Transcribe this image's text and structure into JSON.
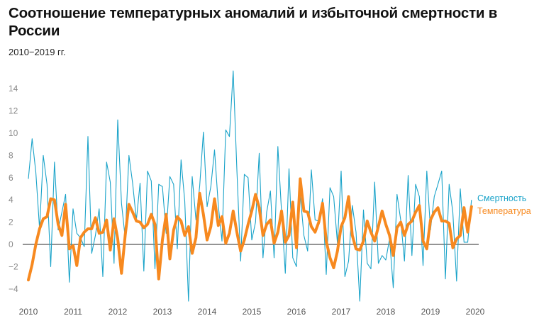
{
  "title": "Соотношение температурных аномалий и избыточной смертности в России",
  "subtitle": "2010−2019 гг.",
  "chart_data": {
    "type": "line",
    "title": "Соотношение температурных аномалий и избыточной смертности в России",
    "subtitle": "2010−2019 гг.",
    "xlabel": "",
    "ylabel": "",
    "x_start": "2010-01",
    "x_frequency": "monthly",
    "xlim": [
      2010,
      2020
    ],
    "ylim": [
      -5,
      16
    ],
    "x_ticks": [
      "2010",
      "2011",
      "2012",
      "2013",
      "2014",
      "2015",
      "2016",
      "2017",
      "2018",
      "2019",
      "2020"
    ],
    "y_ticks": [
      "-4",
      "-2",
      "0",
      "2",
      "4",
      "6",
      "8",
      "10",
      "12",
      "14"
    ],
    "grid": false,
    "legend_placement": "right",
    "zero_line": true,
    "series": [
      {
        "name": "Смертность",
        "color": "#1aa3c9",
        "values": [
          5.9,
          9.5,
          6.5,
          1.4,
          8.0,
          5.4,
          -2.0,
          7.4,
          1.3,
          2.9,
          4.5,
          -3.4,
          3.2,
          1.0,
          0.6,
          -0.2,
          9.7,
          -0.8,
          0.8,
          3.2,
          -2.9,
          7.4,
          5.6,
          -1.7,
          11.2,
          3.7,
          0.6,
          8.0,
          5.5,
          2.2,
          5.5,
          -2.4,
          6.6,
          5.7,
          -2.2,
          5.4,
          5.2,
          1.0,
          6.1,
          5.4,
          -0.4,
          7.6,
          3.9,
          -5.1,
          6.1,
          2.2,
          5.2,
          10.1,
          3.4,
          5.2,
          8.5,
          3.5,
          0.3,
          10.3,
          9.7,
          15.6,
          6.7,
          -1.5,
          6.3,
          6.0,
          0.4,
          2.0,
          8.2,
          -1.2,
          2.9,
          4.8,
          -1.2,
          8.8,
          2.9,
          -2.6,
          6.8,
          -1.2,
          -2.0,
          4.5,
          0.8,
          -0.6,
          6.7,
          2.2,
          2.1,
          4.1,
          -2.7,
          5.1,
          4.3,
          0.1,
          6.6,
          -2.9,
          -1.5,
          3.5,
          1.1,
          -5.1,
          3.1,
          -1.7,
          -2.2,
          5.6,
          -1.7,
          -1.0,
          -1.4,
          0.5,
          -3.9,
          4.5,
          2.2,
          -1.5,
          6.2,
          -1.0,
          5.4,
          4.3,
          -1.9,
          6.6,
          1.3,
          4.3,
          5.4,
          6.6,
          -3.1,
          5.4,
          2.9,
          -3.3,
          5.0,
          0.2,
          0.2,
          4.0
        ]
      },
      {
        "name": "Температура",
        "color": "#f7891f",
        "values": [
          -3.2,
          -1.8,
          0,
          1.4,
          2.3,
          2.5,
          4.1,
          4.0,
          1.8,
          0.8,
          3.6,
          -0.4,
          -0.1,
          -1.9,
          0.6,
          1.1,
          1.4,
          1.4,
          2.4,
          1.0,
          1.1,
          2.2,
          -0.5,
          2.3,
          0.5,
          -2.6,
          0.8,
          3.6,
          2.9,
          2.1,
          2.0,
          1.5,
          1.8,
          2.7,
          1.8,
          -3.1,
          0.4,
          2.7,
          -1.3,
          1.3,
          2.5,
          2.1,
          0.8,
          1.6,
          -0.8,
          0.6,
          4.6,
          2.7,
          0.4,
          1.6,
          4.1,
          1.7,
          2.5,
          0.1,
          1.0,
          3.0,
          1.1,
          -0.6,
          0.4,
          1.8,
          3.0,
          4.5,
          3.3,
          0.8,
          1.8,
          2.2,
          0.1,
          1.1,
          3.0,
          0.2,
          0.8,
          3.8,
          -0.3,
          5.9,
          3.0,
          2.9,
          1.6,
          1.1,
          2.0,
          3.7,
          0.3,
          -1.2,
          -2.1,
          -0.6,
          1.6,
          2.4,
          4.3,
          0.8,
          -0.4,
          -0.5,
          0.3,
          2.1,
          1.1,
          0.3,
          1.6,
          3.0,
          1.8,
          0.8,
          -1.0,
          1.5,
          2.0,
          0.8,
          1.8,
          2.1,
          2.9,
          3.5,
          0.3,
          -0.4,
          2.2,
          2.9,
          3.3,
          2.1,
          2.1,
          1.9,
          -0.3,
          0.5,
          0.8,
          3.3,
          1.1,
          3.4
        ]
      }
    ]
  }
}
